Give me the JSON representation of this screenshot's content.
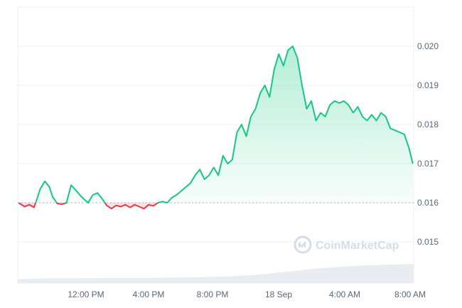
{
  "chart_data": {
    "type": "area",
    "xlabel": "",
    "ylabel": "",
    "x_ticks": [
      "12:00 PM",
      "4:00 PM",
      "8:00 PM",
      "18 Sep",
      "4:00 AM",
      "8:00 AM"
    ],
    "y_ticks": [
      "0.020",
      "0.019",
      "0.018",
      "0.017",
      "0.016",
      "0.015"
    ],
    "ylim": [
      0.014,
      0.0211
    ],
    "x_unit": "hours after 8:00 AM, 17 Sep",
    "xlim": [
      6.8,
      32.25
    ],
    "reference_price": 0.016,
    "grid": "horizontal",
    "series": [
      {
        "values_x": [
          6.8,
          7.2,
          7.5,
          7.8,
          8.0,
          8.2,
          8.5,
          8.8,
          9.0,
          9.3,
          9.6,
          9.9,
          10.2,
          10.5,
          10.8,
          11.0,
          11.3,
          11.6,
          11.9,
          12.2,
          12.5,
          12.8,
          13.1,
          13.4,
          13.7,
          14.0,
          14.3,
          14.6,
          14.9,
          15.2,
          15.5,
          15.8,
          16.1,
          16.4,
          16.7,
          17.0,
          17.3,
          17.6,
          17.9,
          18.2,
          18.5,
          18.8,
          19.1,
          19.4,
          19.7,
          20.0,
          20.3,
          20.6,
          20.9,
          21.2,
          21.5,
          21.8,
          22.1,
          22.4,
          22.7,
          23.0,
          23.3,
          23.6,
          23.9,
          24.2,
          24.5,
          24.8,
          25.1,
          25.4,
          25.7,
          26.0,
          26.3,
          26.6,
          26.9,
          27.2,
          27.5,
          27.8,
          28.1,
          28.4,
          28.7,
          29.0,
          29.3,
          29.6,
          29.9,
          30.2,
          30.5,
          30.8,
          31.1,
          31.4,
          31.7,
          32.0,
          32.25
        ],
        "values": [
          0.016,
          0.0159,
          0.01595,
          0.01588,
          0.0161,
          0.01635,
          0.01655,
          0.0164,
          0.01615,
          0.01598,
          0.01596,
          0.016,
          0.01645,
          0.01632,
          0.01618,
          0.0161,
          0.016,
          0.0162,
          0.01625,
          0.0161,
          0.01593,
          0.01585,
          0.01593,
          0.0159,
          0.01595,
          0.01588,
          0.01595,
          0.0159,
          0.01585,
          0.01595,
          0.01592,
          0.016,
          0.01603,
          0.016,
          0.01613,
          0.0162,
          0.0163,
          0.0164,
          0.0165,
          0.0167,
          0.01685,
          0.0166,
          0.0167,
          0.0169,
          0.0167,
          0.0172,
          0.017,
          0.0171,
          0.0178,
          0.018,
          0.0177,
          0.0182,
          0.0184,
          0.0188,
          0.019,
          0.0187,
          0.0194,
          0.0198,
          0.0195,
          0.0199,
          0.02,
          0.0197,
          0.019,
          0.0184,
          0.0186,
          0.0181,
          0.0183,
          0.0182,
          0.0185,
          0.0186,
          0.01855,
          0.0186,
          0.0185,
          0.0183,
          0.01845,
          0.0182,
          0.0181,
          0.01825,
          0.0181,
          0.0183,
          0.0182,
          0.0179,
          0.01785,
          0.0178,
          0.01775,
          0.0174,
          0.017
        ]
      }
    ],
    "volume": [
      0.1,
      0.12,
      0.12,
      0.13,
      0.13,
      0.14,
      0.15,
      0.17,
      0.22,
      0.3,
      0.38,
      0.43,
      0.46,
      0.48
    ],
    "colors": {
      "up": "#16c784",
      "down": "#ea3943",
      "grid": "#eff2f5",
      "text": "#58667e",
      "volume": "#e3e8ee",
      "watermark": "#cfd6e4"
    },
    "watermark": {
      "text": "CoinMarketCap",
      "icon": "coinmarketcap-logo-icon"
    }
  }
}
